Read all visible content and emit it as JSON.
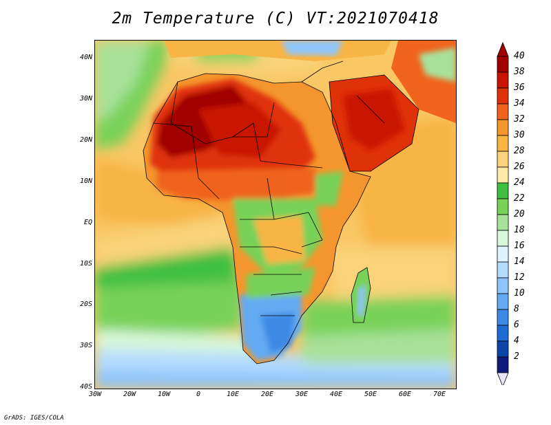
{
  "title": "2m Temperature (C) VT:2021070418",
  "credit": "GrADS: IGES/COLA",
  "map": {
    "region": "Africa",
    "lon_range": [
      -30,
      75
    ],
    "lat_range": [
      -40,
      45
    ],
    "x_ticks": [
      "30W",
      "20W",
      "10W",
      "0",
      "10E",
      "20E",
      "30E",
      "40E",
      "50E",
      "60E",
      "70E"
    ],
    "y_ticks": [
      "40N",
      "30N",
      "20N",
      "10N",
      "EQ",
      "10S",
      "20S",
      "30S",
      "40S"
    ]
  },
  "colorbar": {
    "labels": [
      "40",
      "38",
      "36",
      "34",
      "32",
      "30",
      "28",
      "26",
      "24",
      "22",
      "20",
      "18",
      "16",
      "14",
      "12",
      "10",
      "8",
      "6",
      "4",
      "2"
    ],
    "colors": [
      "#a00000",
      "#c81400",
      "#e03208",
      "#f0641e",
      "#f4962d",
      "#f8b444",
      "#fad37a",
      "#fdeaa6",
      "#40c040",
      "#78d258",
      "#a8e19a",
      "#d8f7d8",
      "#e0f4ff",
      "#b4dcff",
      "#8ec4fa",
      "#64aaf2",
      "#3c8ae6",
      "#1e6cd2",
      "#0a46aa",
      "#101a7a"
    ],
    "min_color": "#e6e6f8",
    "max_color": "#a00000"
  }
}
